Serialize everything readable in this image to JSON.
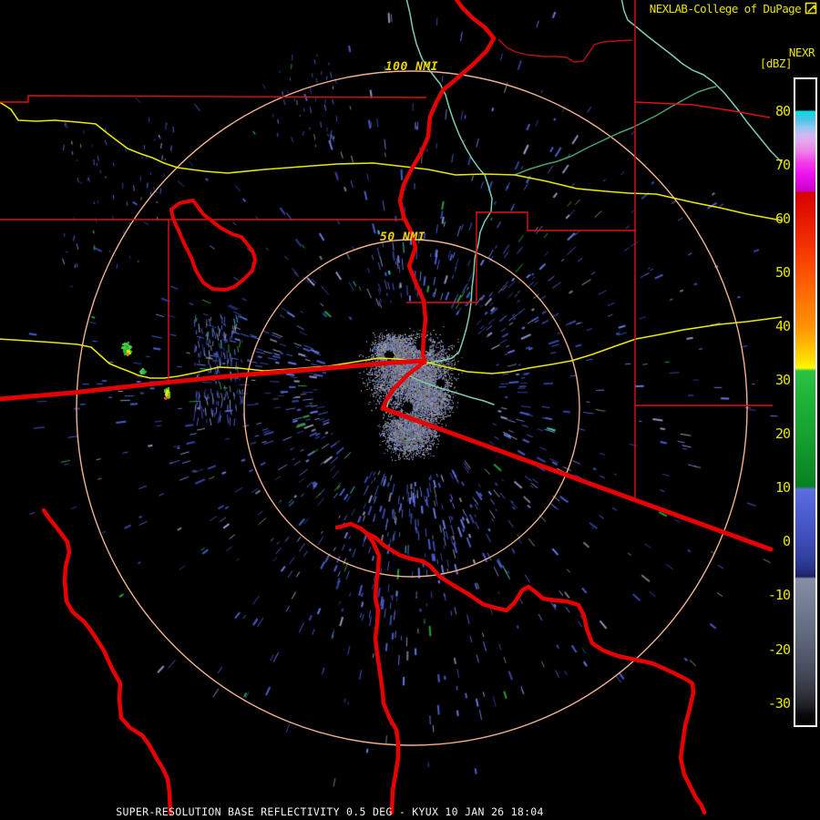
{
  "header": {
    "title": "NEXLAB-College of DuPage",
    "logo_icon": "cod-flag-icon"
  },
  "colorbar": {
    "title": "NEXR",
    "units": "[dBZ]",
    "tick_labels": [
      "80",
      "70",
      "60",
      "50",
      "40",
      "30",
      "20",
      "10",
      "0",
      "-10",
      "-20",
      "-30"
    ],
    "border_color": "#ffffff",
    "label_color": "#e8e400",
    "gradient_stops": [
      [
        0,
        "#000000"
      ],
      [
        34,
        "#000000"
      ],
      [
        35,
        "#00dede"
      ],
      [
        44,
        "#4cc2ea"
      ],
      [
        52,
        "#8ac8f0"
      ],
      [
        60,
        "#c8baf2"
      ],
      [
        68,
        "#e6a8ee"
      ],
      [
        80,
        "#ee7ce8"
      ],
      [
        92,
        "#f23ae8"
      ],
      [
        104,
        "#ee12ee"
      ],
      [
        115,
        "#da08da"
      ],
      [
        123,
        "#c402c4"
      ],
      [
        124,
        "#d80000"
      ],
      [
        153,
        "#e61800"
      ],
      [
        183,
        "#f43200"
      ],
      [
        211,
        "#fc5000"
      ],
      [
        239,
        "#ff7000"
      ],
      [
        271,
        "#ff9200"
      ],
      [
        289,
        "#ffb600"
      ],
      [
        306,
        "#ffda00"
      ],
      [
        317,
        "#fafa00"
      ],
      [
        320,
        "#2cc244"
      ],
      [
        353,
        "#1eb238"
      ],
      [
        388,
        "#16a230"
      ],
      [
        422,
        "#0e8e26"
      ],
      [
        447,
        "#088020"
      ],
      [
        450,
        "#5a6ede"
      ],
      [
        475,
        "#4e5ed2"
      ],
      [
        500,
        "#4250bc"
      ],
      [
        525,
        "#32409e"
      ],
      [
        541,
        "#242c7a"
      ],
      [
        546,
        "#1a2462"
      ],
      [
        548,
        "#878fa7"
      ],
      [
        573,
        "#777f97"
      ],
      [
        603,
        "#656d83"
      ],
      [
        629,
        "#555b6f"
      ],
      [
        654,
        "#434755"
      ],
      [
        676,
        "#2f3139"
      ],
      [
        689,
        "#1d1d21"
      ],
      [
        696,
        "#0b0b0b"
      ],
      [
        709,
        "#000000"
      ]
    ]
  },
  "rings": {
    "outer_label": "100 NMI",
    "inner_label": "50 NMI",
    "ring_color": "#f2b28e",
    "label_color": "#ecd400"
  },
  "footer": {
    "title": "SUPER-RESOLUTION BASE REFLECTIVITY 0.5 DEG - KYUX 10 JAN 26 18:04"
  },
  "map_colors": {
    "state_border": "#e60000",
    "county_border": "#e01010",
    "county_border_dark": "#b81010",
    "highway": "#e8e800",
    "secondary_road": "#4aa06a",
    "river": "#7fccaa",
    "background": "#000000"
  },
  "clutter_palette": {
    "core_grays": [
      "#83838d",
      "#6d6d77",
      "#999aa6",
      "#585862",
      "#b8b9c2",
      "#4a4a52"
    ],
    "core_blues": [
      "#5a68c8",
      "#707ee2",
      "#434f9f"
    ],
    "echo_blues": [
      "#4a5ac8",
      "#3644a8",
      "#6577e0",
      "#8a92b8",
      "#2c3a8c",
      "#9aa2c8"
    ],
    "echo_gray": "#757583",
    "echo_green": "#28a038",
    "echo_cyan": "#40c8c8",
    "cell_green": [
      "#2db33c",
      "#49d24b"
    ],
    "cell_yellow": "#ecec00",
    "cell_orange": "#ff8c00",
    "cell_red": "#e84040"
  }
}
